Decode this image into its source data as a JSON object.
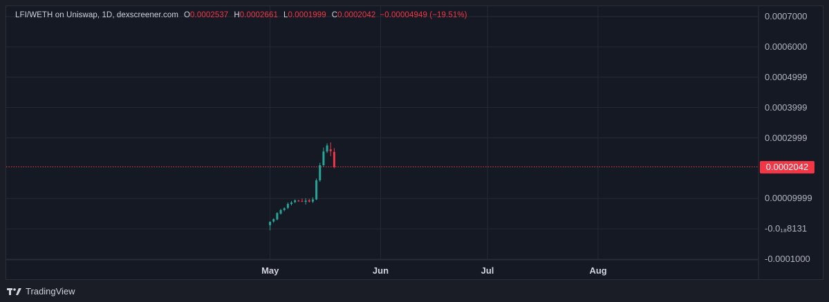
{
  "legend": {
    "pair": "LFI/WETH on Uniswap, 1D, dexscreener.com",
    "o_key": "O",
    "o_val": "0.0002537",
    "h_key": "H",
    "h_val": "0.0002661",
    "l_key": "L",
    "l_val": "0.0001999",
    "c_key": "C",
    "c_val": "0.0002042",
    "change": "−0.00004949 (−19.51%)"
  },
  "last_price_label": "0.0002042",
  "footer": {
    "brand": "TradingView",
    "icon": "tradingview-logo-icon"
  },
  "colors": {
    "background": "#151924",
    "grid": "#262a35",
    "up": "#26a69a",
    "down": "#f23645",
    "price_line": "#f23645",
    "text": "#b2b5be"
  },
  "chart_data": {
    "type": "candlestick",
    "yaxis": {
      "labels": [
        {
          "value": 0.0007,
          "text": "0.0007000"
        },
        {
          "value": 0.0006,
          "text": "0.0006000"
        },
        {
          "value": 0.0005,
          "text": "0.0004999"
        },
        {
          "value": 0.0004,
          "text": "0.0003999"
        },
        {
          "value": 0.0003,
          "text": "0.0002999"
        },
        {
          "value": 0.0001,
          "text": "0.00009999"
        },
        {
          "value": 0.0,
          "text": "-0.0₁₈8131"
        },
        {
          "value": -0.0001,
          "text": "-0.0001000"
        }
      ],
      "range": [
        -0.0001,
        0.0007
      ]
    },
    "xaxis": {
      "labels": [
        "May",
        "Jun",
        "Jul",
        "Aug"
      ],
      "label_day_index": [
        0,
        31,
        61,
        92
      ],
      "range_day_index": [
        -74,
        137
      ]
    },
    "last_price": 0.0002042,
    "candles": [
      {
        "d": 0,
        "o": 1.2e-05,
        "h": 2.5e-05,
        "l": -5e-06,
        "c": 2.3e-05
      },
      {
        "d": 1,
        "o": 2.4e-05,
        "h": 3.5e-05,
        "l": 2e-05,
        "c": 3.2e-05
      },
      {
        "d": 2,
        "o": 3.1e-05,
        "h": 5.5e-05,
        "l": 2.8e-05,
        "c": 5.2e-05
      },
      {
        "d": 3,
        "o": 5e-05,
        "h": 6.6e-05,
        "l": 4.7e-05,
        "c": 6.2e-05
      },
      {
        "d": 4,
        "o": 6.2e-05,
        "h": 7.1e-05,
        "l": 5.8e-05,
        "c": 6.8e-05
      },
      {
        "d": 5,
        "o": 6.9e-05,
        "h": 8.7e-05,
        "l": 6.5e-05,
        "c": 8.2e-05
      },
      {
        "d": 6,
        "o": 8.2e-05,
        "h": 9.2e-05,
        "l": 7.7e-05,
        "c": 8.7e-05
      },
      {
        "d": 7,
        "o": 8.8e-05,
        "h": 9.7e-05,
        "l": 8.5e-05,
        "c": 9.4e-05
      },
      {
        "d": 8,
        "o": 9.3e-05,
        "h": 9.6e-05,
        "l": 8.9e-05,
        "c": 9.1e-05
      },
      {
        "d": 9,
        "o": 9.2e-05,
        "h": 0.0001,
        "l": 8.8e-05,
        "c": 9e-05
      },
      {
        "d": 10,
        "o": 8.9e-05,
        "h": 0.000101,
        "l": 8e-05,
        "c": 9.3e-05
      },
      {
        "d": 11,
        "o": 9.4e-05,
        "h": 9.9e-05,
        "l": 8.7e-05,
        "c": 9e-05
      },
      {
        "d": 12,
        "o": 9e-05,
        "h": 0.000104,
        "l": 8.5e-05,
        "c": 9.7e-05
      },
      {
        "d": 13,
        "o": 9.7e-05,
        "h": 0.000166,
        "l": 9.5e-05,
        "c": 0.00016
      },
      {
        "d": 14,
        "o": 0.00016,
        "h": 0.000218,
        "l": 0.000155,
        "c": 0.00021
      },
      {
        "d": 15,
        "o": 0.00021,
        "h": 0.000268,
        "l": 0.000205,
        "c": 0.000255
      },
      {
        "d": 16,
        "o": 0.000255,
        "h": 0.000282,
        "l": 0.00025,
        "c": 0.000275
      },
      {
        "d": 17,
        "o": 0.000262,
        "h": 0.000285,
        "l": 0.00024,
        "c": 0.000256
      },
      {
        "d": 18,
        "o": 0.0002537,
        "h": 0.0002661,
        "l": 0.0001999,
        "c": 0.0002042
      }
    ]
  }
}
